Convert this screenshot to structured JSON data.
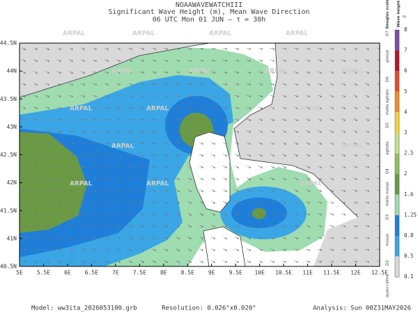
{
  "header": {
    "model_name": "NOAAWAVEWATCHIII",
    "title": "Significant Wave Height (m), Mean Wave Direction",
    "subtitle": "06 UTC Mon 01 JUN  –  τ = 30h"
  },
  "map": {
    "watermark": "ARPAL",
    "lat_ticks": [
      "44.5N",
      "44N",
      "43.5N",
      "43N",
      "42.5N",
      "42N",
      "41.5N",
      "41N",
      "40.5N"
    ],
    "lon_ticks": [
      "5E",
      "5.5E",
      "6E",
      "6.5E",
      "7E",
      "7.5E",
      "8E",
      "8.5E",
      "9E",
      "9.5E",
      "10E",
      "10.5E",
      "11E",
      "11.5E",
      "12E",
      "12.5E"
    ]
  },
  "colorbar": {
    "title": "Wave height",
    "unit": "m",
    "douglas_title": "Douglas scale",
    "labels": [
      "8",
      "7",
      "6",
      "5",
      "4",
      "3",
      "2.5",
      "2",
      "1.6",
      "1.25",
      "0.8",
      "0.5",
      "0.1"
    ],
    "colors": [
      "#7b4fa3",
      "#b2182b",
      "#e0502a",
      "#f08c30",
      "#f5d33a",
      "#c6e08a",
      "#8fbf5a",
      "#6b9a45",
      "#9fdcb0",
      "#1f7fd8",
      "#3aa6e6",
      "#d9d9d9"
    ],
    "douglas": [
      "D7",
      "grossa",
      "D6",
      "molto agitato",
      "D5",
      "agitato",
      "D4",
      "molto mosso",
      "D3",
      "mosso",
      "D2",
      "quasi calmo"
    ]
  },
  "footer": {
    "model": "Model:  ww3ita_2026053100.grb",
    "resolution": "Resolution: 0.026°x0.020°",
    "analysis": "Analysis: Sun 00Z31MAY2026"
  }
}
